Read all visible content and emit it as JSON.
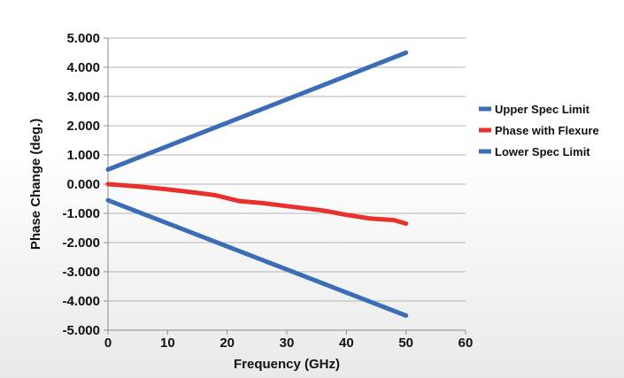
{
  "chart_data": {
    "type": "line",
    "title": "",
    "xlabel": "Frequency (GHz)",
    "ylabel": "Phase Change (deg.)",
    "xlim": [
      0,
      60
    ],
    "ylim": [
      -5,
      5
    ],
    "x_ticks": [
      0,
      10,
      20,
      30,
      40,
      50,
      60
    ],
    "x_tick_labels": [
      "0",
      "10",
      "20",
      "30",
      "40",
      "50",
      "60"
    ],
    "y_ticks": [
      5,
      4,
      3,
      2,
      1,
      0,
      -1,
      -2,
      -3,
      -4,
      -5
    ],
    "y_tick_labels": [
      "5.000",
      "4.000",
      "3.000",
      "2.000",
      "1.000",
      "0.000",
      "-1.000",
      "-2.000",
      "-3.000",
      "-4.000",
      "-5.000"
    ],
    "grid": "horizontal",
    "legend_position": "right",
    "series": [
      {
        "name": "Upper Spec Limit",
        "color": "#3a6db5",
        "x": [
          0,
          50
        ],
        "y": [
          0.5,
          4.5
        ]
      },
      {
        "name": "Phase with Flexure",
        "color": "#e8302c",
        "x": [
          0,
          5,
          10,
          15,
          18,
          22,
          26,
          30,
          36,
          40,
          44,
          48,
          50
        ],
        "y": [
          0.0,
          -0.08,
          -0.18,
          -0.3,
          -0.38,
          -0.58,
          -0.65,
          -0.75,
          -0.9,
          -1.05,
          -1.18,
          -1.23,
          -1.35
        ]
      },
      {
        "name": "Lower Spec Limit",
        "color": "#3a6db5",
        "x": [
          0,
          50
        ],
        "y": [
          -0.55,
          -4.5
        ]
      }
    ]
  }
}
